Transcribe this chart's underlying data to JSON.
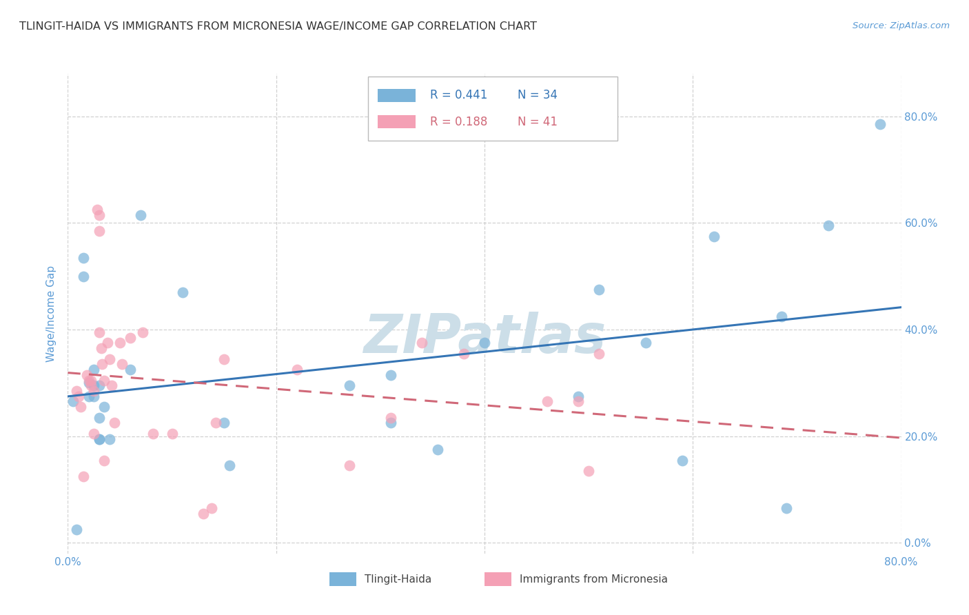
{
  "title": "TLINGIT-HAIDA VS IMMIGRANTS FROM MICRONESIA WAGE/INCOME GAP CORRELATION CHART",
  "source": "Source: ZipAtlas.com",
  "ylabel": "Wage/Income Gap",
  "xlim": [
    0.0,
    0.8
  ],
  "ylim": [
    -0.02,
    0.88
  ],
  "ytick_values": [
    0.0,
    0.2,
    0.4,
    0.6,
    0.8
  ],
  "xtick_values": [
    0.0,
    0.2,
    0.4,
    0.6,
    0.8
  ],
  "legend_label1": "Tlingit-Haida",
  "legend_label2": "Immigrants from Micronesia",
  "R1": "0.441",
  "N1": "34",
  "R2": "0.188",
  "N2": "41",
  "color_blue": "#7ab3d9",
  "color_pink": "#f4a0b5",
  "color_line_blue": "#3575b5",
  "color_line_pink": "#d06878",
  "color_title": "#333333",
  "color_axis_labels": "#5b9bd5",
  "watermark": "ZIPatlas",
  "watermark_color": "#ccdee8",
  "grid_color": "#cccccc",
  "background_color": "#ffffff",
  "tlingit_x": [
    0.005,
    0.015,
    0.015,
    0.025,
    0.008,
    0.02,
    0.02,
    0.025,
    0.025,
    0.03,
    0.035,
    0.03,
    0.03,
    0.03,
    0.04,
    0.06,
    0.07,
    0.11,
    0.15,
    0.155,
    0.27,
    0.31,
    0.31,
    0.355,
    0.4,
    0.49,
    0.51,
    0.555,
    0.59,
    0.62,
    0.685,
    0.69,
    0.73,
    0.78
  ],
  "tlingit_y": [
    0.265,
    0.535,
    0.5,
    0.275,
    0.025,
    0.275,
    0.3,
    0.325,
    0.295,
    0.295,
    0.255,
    0.235,
    0.195,
    0.195,
    0.195,
    0.325,
    0.615,
    0.47,
    0.225,
    0.145,
    0.295,
    0.315,
    0.225,
    0.175,
    0.375,
    0.275,
    0.475,
    0.375,
    0.155,
    0.575,
    0.425,
    0.065,
    0.595,
    0.785
  ],
  "micronesia_x": [
    0.008,
    0.01,
    0.012,
    0.015,
    0.018,
    0.02,
    0.022,
    0.022,
    0.025,
    0.025,
    0.028,
    0.03,
    0.03,
    0.03,
    0.032,
    0.033,
    0.035,
    0.035,
    0.038,
    0.04,
    0.042,
    0.045,
    0.05,
    0.052,
    0.06,
    0.072,
    0.082,
    0.1,
    0.13,
    0.138,
    0.142,
    0.15,
    0.22,
    0.27,
    0.31,
    0.34,
    0.38,
    0.46,
    0.49,
    0.5,
    0.51
  ],
  "micronesia_y": [
    0.285,
    0.275,
    0.255,
    0.125,
    0.315,
    0.305,
    0.305,
    0.295,
    0.285,
    0.205,
    0.625,
    0.615,
    0.585,
    0.395,
    0.365,
    0.335,
    0.305,
    0.155,
    0.375,
    0.345,
    0.295,
    0.225,
    0.375,
    0.335,
    0.385,
    0.395,
    0.205,
    0.205,
    0.055,
    0.065,
    0.225,
    0.345,
    0.325,
    0.145,
    0.235,
    0.375,
    0.355,
    0.265,
    0.265,
    0.135,
    0.355
  ]
}
